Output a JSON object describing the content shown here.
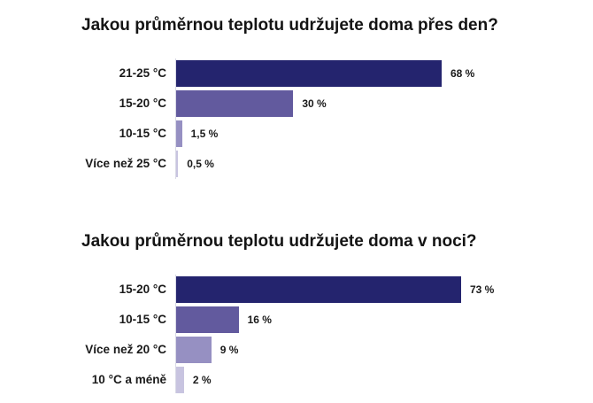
{
  "chart_data": [
    {
      "type": "bar",
      "orientation": "horizontal",
      "title": "Jakou průměrnou teplotu udržujete doma přes den?",
      "categories": [
        "21-25 °C",
        "15-20 °C",
        "10-15 °C",
        "Více než 25 °C"
      ],
      "values": [
        68,
        30,
        1.5,
        0.5
      ],
      "value_labels": [
        "68 %",
        "30 %",
        "1,5 %",
        "0,5 %"
      ],
      "colors": [
        "#24246e",
        "#625a9e",
        "#9690c2",
        "#c8c4e0"
      ],
      "xlim": [
        0,
        68
      ]
    },
    {
      "type": "bar",
      "orientation": "horizontal",
      "title": "Jakou průměrnou teplotu udržujete doma v noci?",
      "categories": [
        "15-20 °C",
        "10-15 °C",
        "Více než 20 °C",
        "10 °C a méně"
      ],
      "values": [
        73,
        16,
        9,
        2
      ],
      "value_labels": [
        "73 %",
        "16 %",
        "9 %",
        "2 %"
      ],
      "colors": [
        "#24246e",
        "#625a9e",
        "#9690c2",
        "#c8c4e0"
      ],
      "xlim": [
        0,
        73
      ]
    }
  ]
}
